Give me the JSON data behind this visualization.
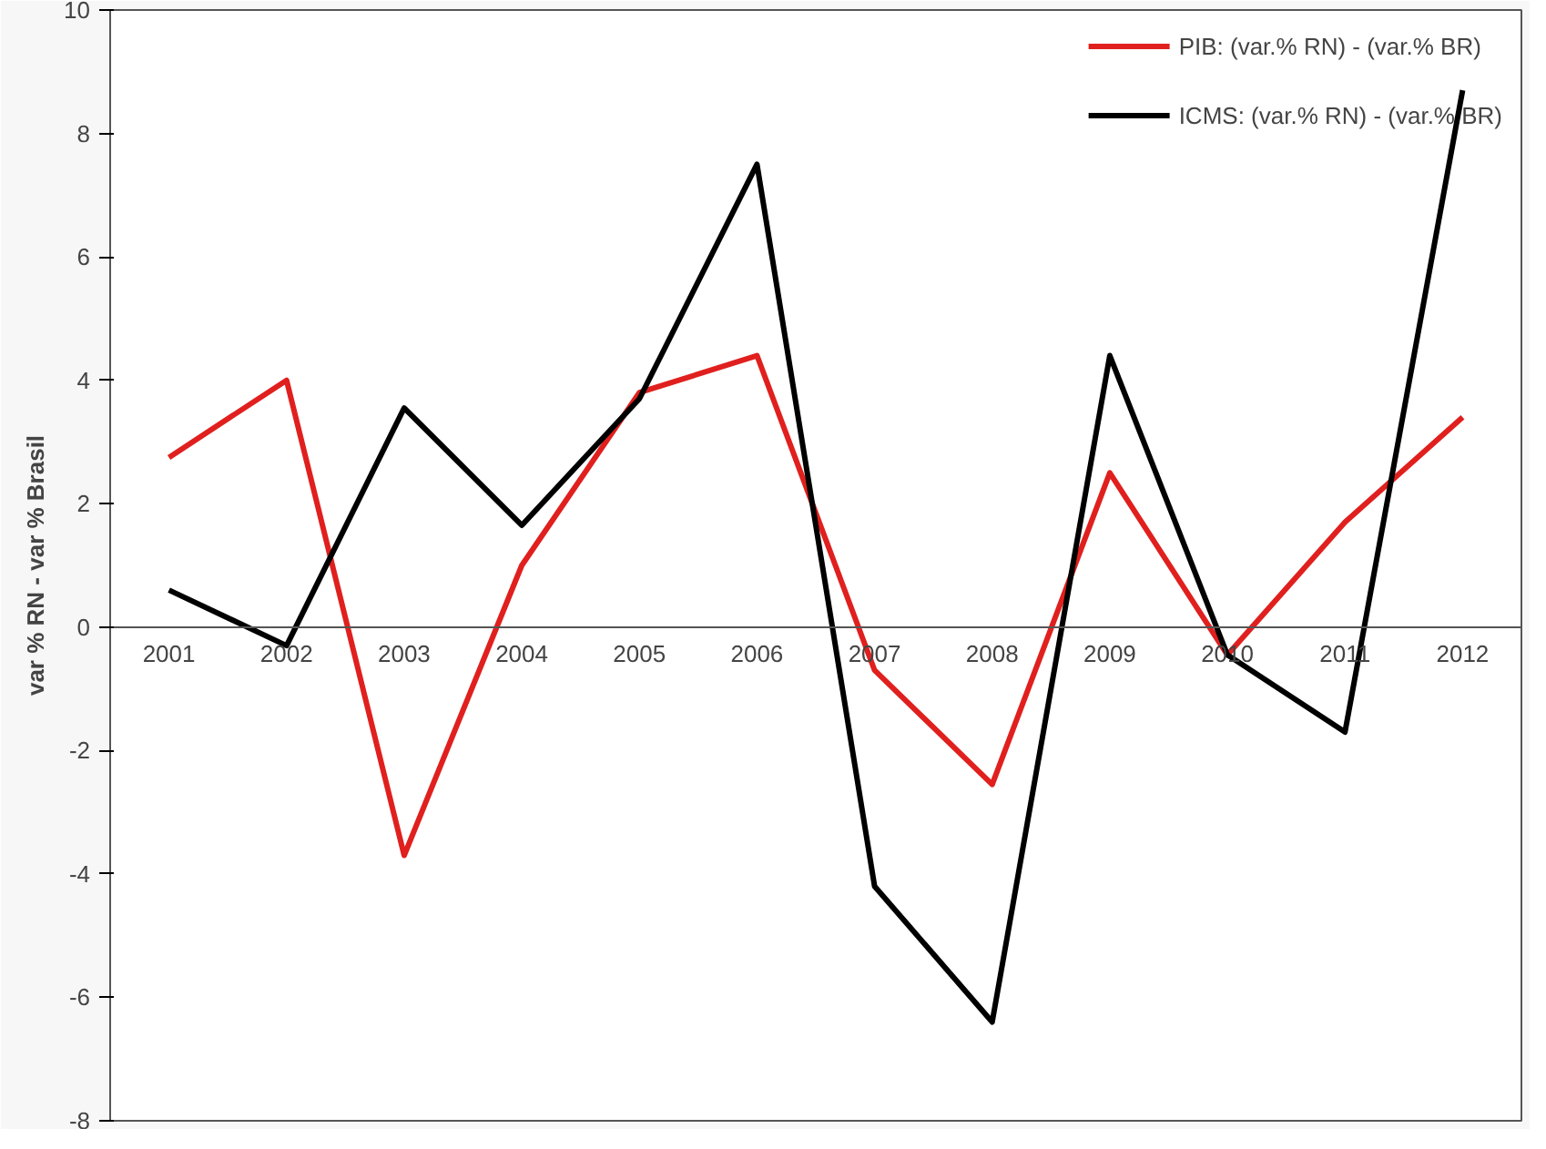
{
  "chart_data": {
    "type": "line",
    "ylabel": "var % RN - var % Brasil",
    "categories": [
      "2001",
      "2002",
      "2003",
      "2004",
      "2005",
      "2006",
      "2007",
      "2008",
      "2009",
      "2010",
      "2011",
      "2012"
    ],
    "series": [
      {
        "name": "PIB: (var.% RN) - (var.% BR)",
        "color": "#e0201e",
        "values": [
          2.75,
          4.0,
          -3.7,
          1.0,
          3.8,
          4.4,
          -0.7,
          -2.55,
          2.5,
          -0.45,
          1.7,
          3.4
        ]
      },
      {
        "name": "ICMS: (var.% RN) - (var.% BR)",
        "color": "#000000",
        "values": [
          0.6,
          -0.3,
          3.55,
          1.65,
          3.7,
          7.5,
          -4.2,
          -6.4,
          4.4,
          -0.45,
          -1.7,
          8.7
        ]
      }
    ],
    "ylim": [
      -8,
      10
    ],
    "yticks": [
      -8,
      -6,
      -4,
      -2,
      0,
      2,
      4,
      6,
      8,
      10
    ],
    "grid": false,
    "legend": "top right",
    "marker": "none",
    "line_style": "solid"
  }
}
